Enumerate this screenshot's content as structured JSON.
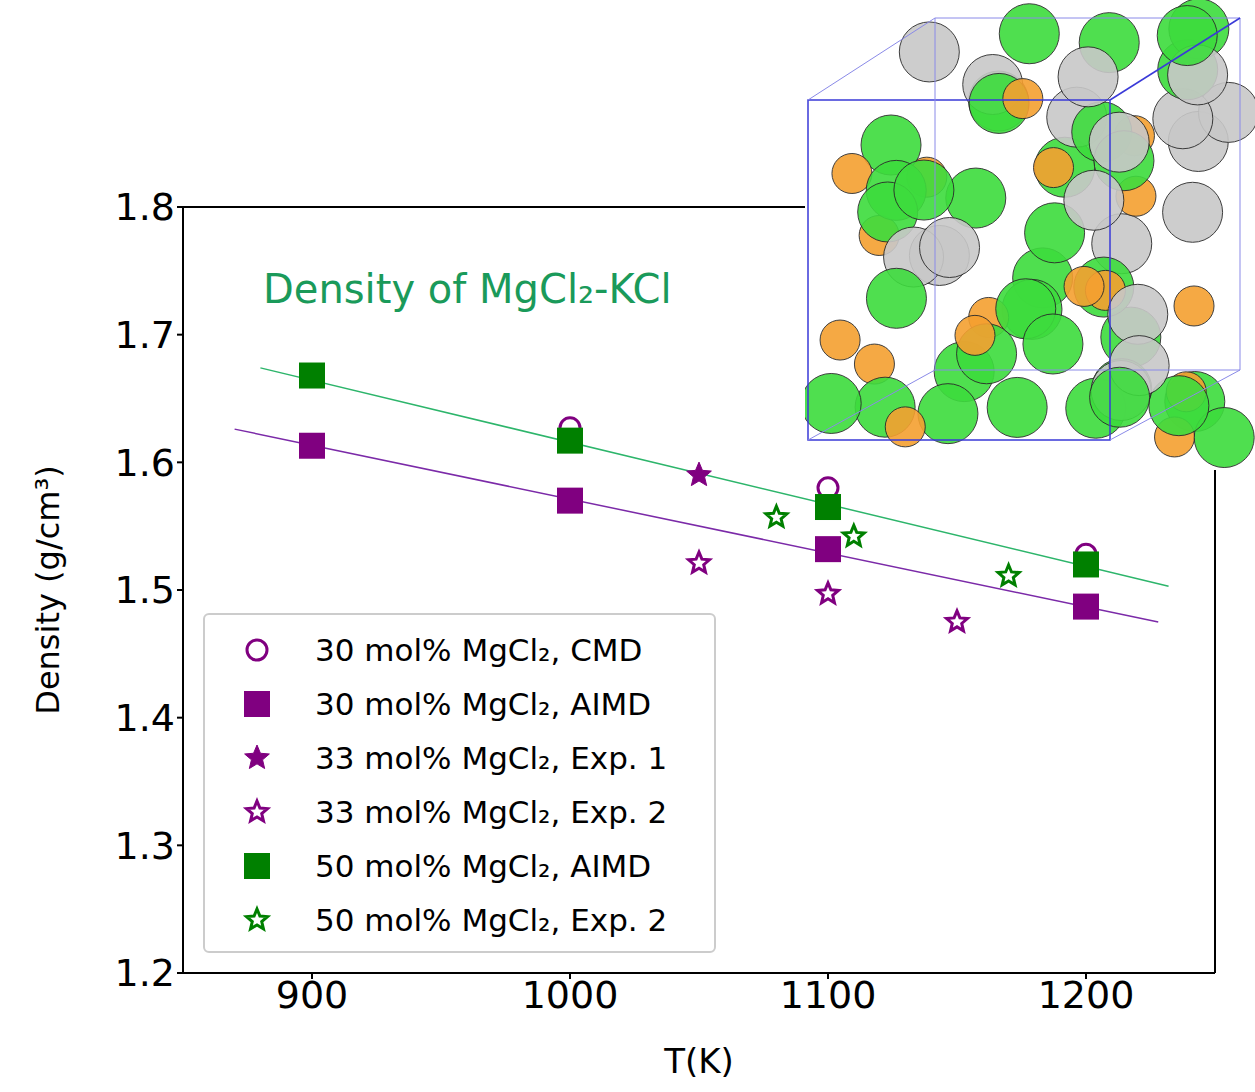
{
  "chart_data": {
    "type": "scatter",
    "title": "Density of MgCl₂-KCl",
    "x_label": "T(K)",
    "y_label": "Density (g/cm³)",
    "xlim": [
      850,
      1250
    ],
    "ylim": [
      1.2,
      1.8
    ],
    "xticks": [
      900,
      1000,
      1100,
      1200
    ],
    "yticks": [
      1.2,
      1.3,
      1.4,
      1.5,
      1.6,
      1.7,
      1.8
    ],
    "legend": "lower left",
    "series": [
      {
        "name": "30 mol% MgCl₂, CMD",
        "color": "#800080",
        "marker": "open_circle",
        "x": [
          1000,
          1100,
          1200
        ],
        "values": [
          1.627,
          1.58,
          1.528
        ]
      },
      {
        "name": "30 mol% MgCl₂, AIMD",
        "color": "#800080",
        "marker": "square",
        "x": [
          900,
          1000,
          1100,
          1200
        ],
        "values": [
          1.613,
          1.57,
          1.532,
          1.487
        ]
      },
      {
        "name": "33 mol% MgCl₂, Exp. 1",
        "color": "#800080",
        "marker": "star",
        "x": [
          1050
        ],
        "values": [
          1.59
        ]
      },
      {
        "name": "33 mol% MgCl₂, Exp. 2",
        "color": "#800080",
        "marker": "open_star",
        "x": [
          1050,
          1100,
          1150
        ],
        "values": [
          1.521,
          1.497,
          1.475
        ]
      },
      {
        "name": "50 mol% MgCl₂, AIMD",
        "color": "#008000",
        "marker": "square",
        "x": [
          900,
          1000,
          1100,
          1200
        ],
        "values": [
          1.668,
          1.617,
          1.565,
          1.52
        ]
      },
      {
        "name": "50 mol% MgCl₂, Exp. 2",
        "color": "#008000",
        "marker": "open_star",
        "x": [
          1080,
          1110,
          1170
        ],
        "values": [
          1.557,
          1.542,
          1.511
        ]
      }
    ],
    "fit_lines": [
      {
        "color": "#2db56b",
        "x": [
          880,
          1232
        ],
        "values": [
          1.674,
          1.503
        ]
      },
      {
        "color": "#7b2aa8",
        "x": [
          870,
          1228
        ],
        "values": [
          1.626,
          1.475
        ]
      }
    ]
  }
}
